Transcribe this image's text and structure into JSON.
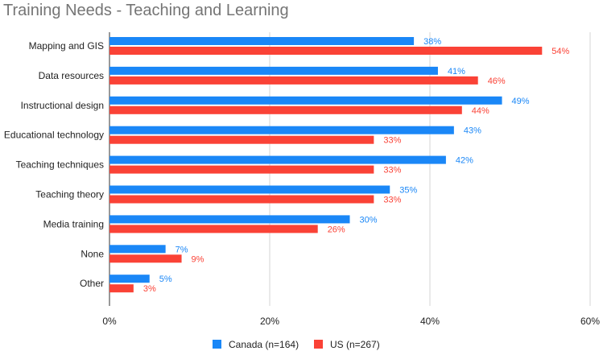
{
  "chart_data": {
    "type": "bar",
    "orientation": "horizontal",
    "title": "Training Needs - Teaching and Learning",
    "categories": [
      "Mapping and GIS",
      "Data resources",
      "Instructional design",
      "Educational technology",
      "Teaching techniques",
      "Teaching theory",
      "Media training",
      "None",
      "Other"
    ],
    "series": [
      {
        "name": "Canada (n=164)",
        "color": "#1a87f7",
        "values": [
          38,
          41,
          49,
          43,
          42,
          35,
          30,
          7,
          5
        ],
        "labels": [
          "38%",
          "41%",
          "49%",
          "43%",
          "42%",
          "35%",
          "30%",
          "7%",
          "5%"
        ]
      },
      {
        "name": "US (n=267)",
        "color": "#fa4236",
        "values": [
          54,
          46,
          44,
          33,
          33,
          33,
          26,
          9,
          3
        ],
        "labels": [
          "54%",
          "46%",
          "44%",
          "33%",
          "33%",
          "33%",
          "26%",
          "9%",
          "3%"
        ]
      }
    ],
    "xlim": [
      0,
      60
    ],
    "xticks": [
      0,
      20,
      40,
      60
    ],
    "xtick_labels": [
      "0%",
      "20%",
      "40%",
      "60%"
    ],
    "grid": true,
    "legend_position": "bottom"
  }
}
